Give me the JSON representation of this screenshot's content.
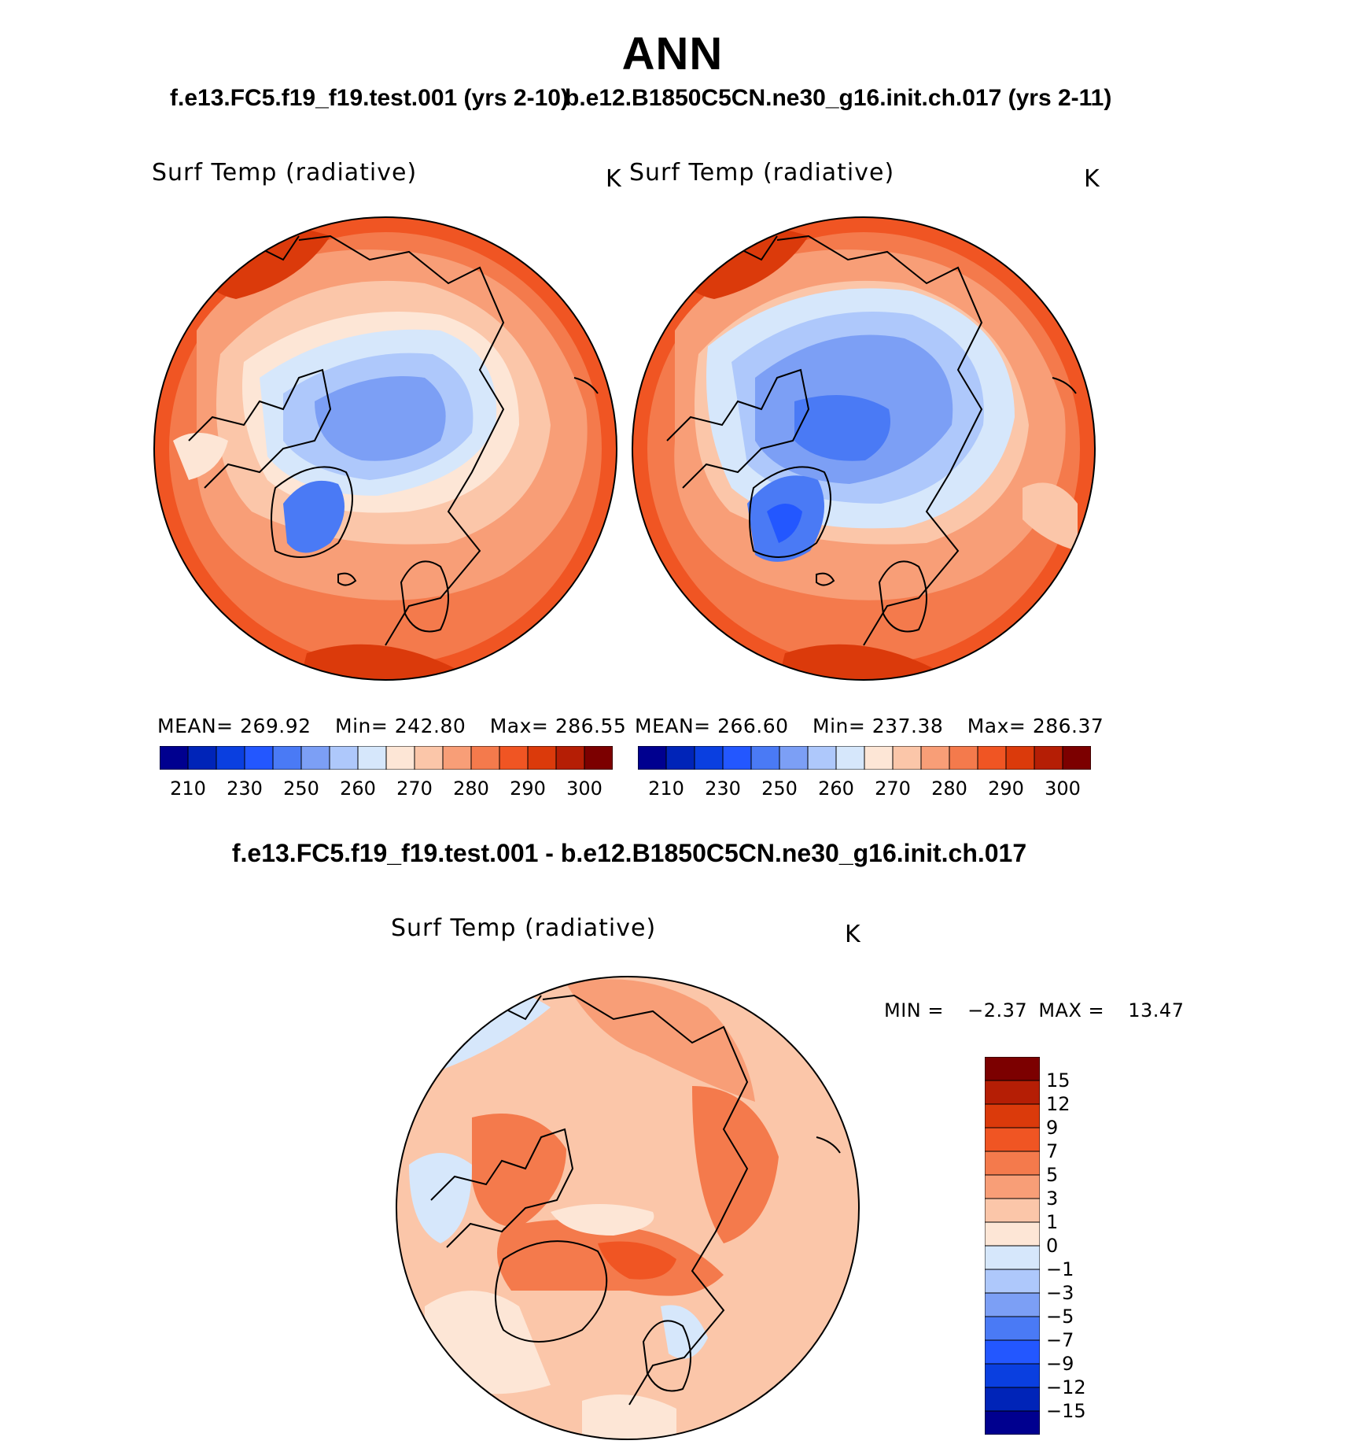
{
  "season_title": "ANN",
  "panels": [
    {
      "case_title": "f.e13.FC5.f19_f19.test.001 (yrs 2-10)",
      "variable": "Surf Temp (radiative)",
      "units": "K",
      "mean_label": "MEAN=",
      "mean": "269.92",
      "min_label": "Min=",
      "min": "242.80",
      "max_label": "Max=",
      "max": "286.55"
    },
    {
      "case_title": "b.e12.B1850C5CN.ne30_g16.init.ch.017 (yrs 2-11)",
      "variable": "Surf Temp (radiative)",
      "units": "K",
      "mean_label": "MEAN=",
      "mean": "266.60",
      "min_label": "Min=",
      "min": "237.38",
      "max_label": "Max=",
      "max": "286.37"
    }
  ],
  "abs_colorbar": {
    "colors": [
      "#00008f",
      "#0024b8",
      "#0a3fe0",
      "#2357ff",
      "#4a7af5",
      "#7c9ff5",
      "#aec8fb",
      "#d6e7fb",
      "#fde6d6",
      "#fbc6a9",
      "#f89e77",
      "#f47a4c",
      "#f05523",
      "#db3a0b",
      "#b51e05",
      "#7c0000"
    ],
    "tick_labels": [
      "210",
      "230",
      "250",
      "260",
      "270",
      "280",
      "290",
      "300"
    ]
  },
  "diff": {
    "title": "f.e13.FC5.f19_f19.test.001 - b.e12.B1850C5CN.ne30_g16.init.ch.017",
    "variable": "Surf Temp (radiative)",
    "units": "K",
    "min_label": "MIN =",
    "min": "−2.37",
    "max_label": "MAX =",
    "max": "13.47",
    "colorbar": {
      "colors": [
        "#7c0000",
        "#b51e05",
        "#db3a0b",
        "#f05523",
        "#f47a4c",
        "#f89e77",
        "#fbc6a9",
        "#fde6d6",
        "#d6e7fb",
        "#aec8fb",
        "#7c9ff5",
        "#4a7af5",
        "#2357ff",
        "#0a3fe0",
        "#0024b8",
        "#00008f"
      ],
      "tick_labels": [
        "15",
        "12",
        "9",
        "7",
        "5",
        "3",
        "1",
        "0",
        "−1",
        "−3",
        "−5",
        "−7",
        "−9",
        "−12",
        "−15"
      ]
    }
  }
}
